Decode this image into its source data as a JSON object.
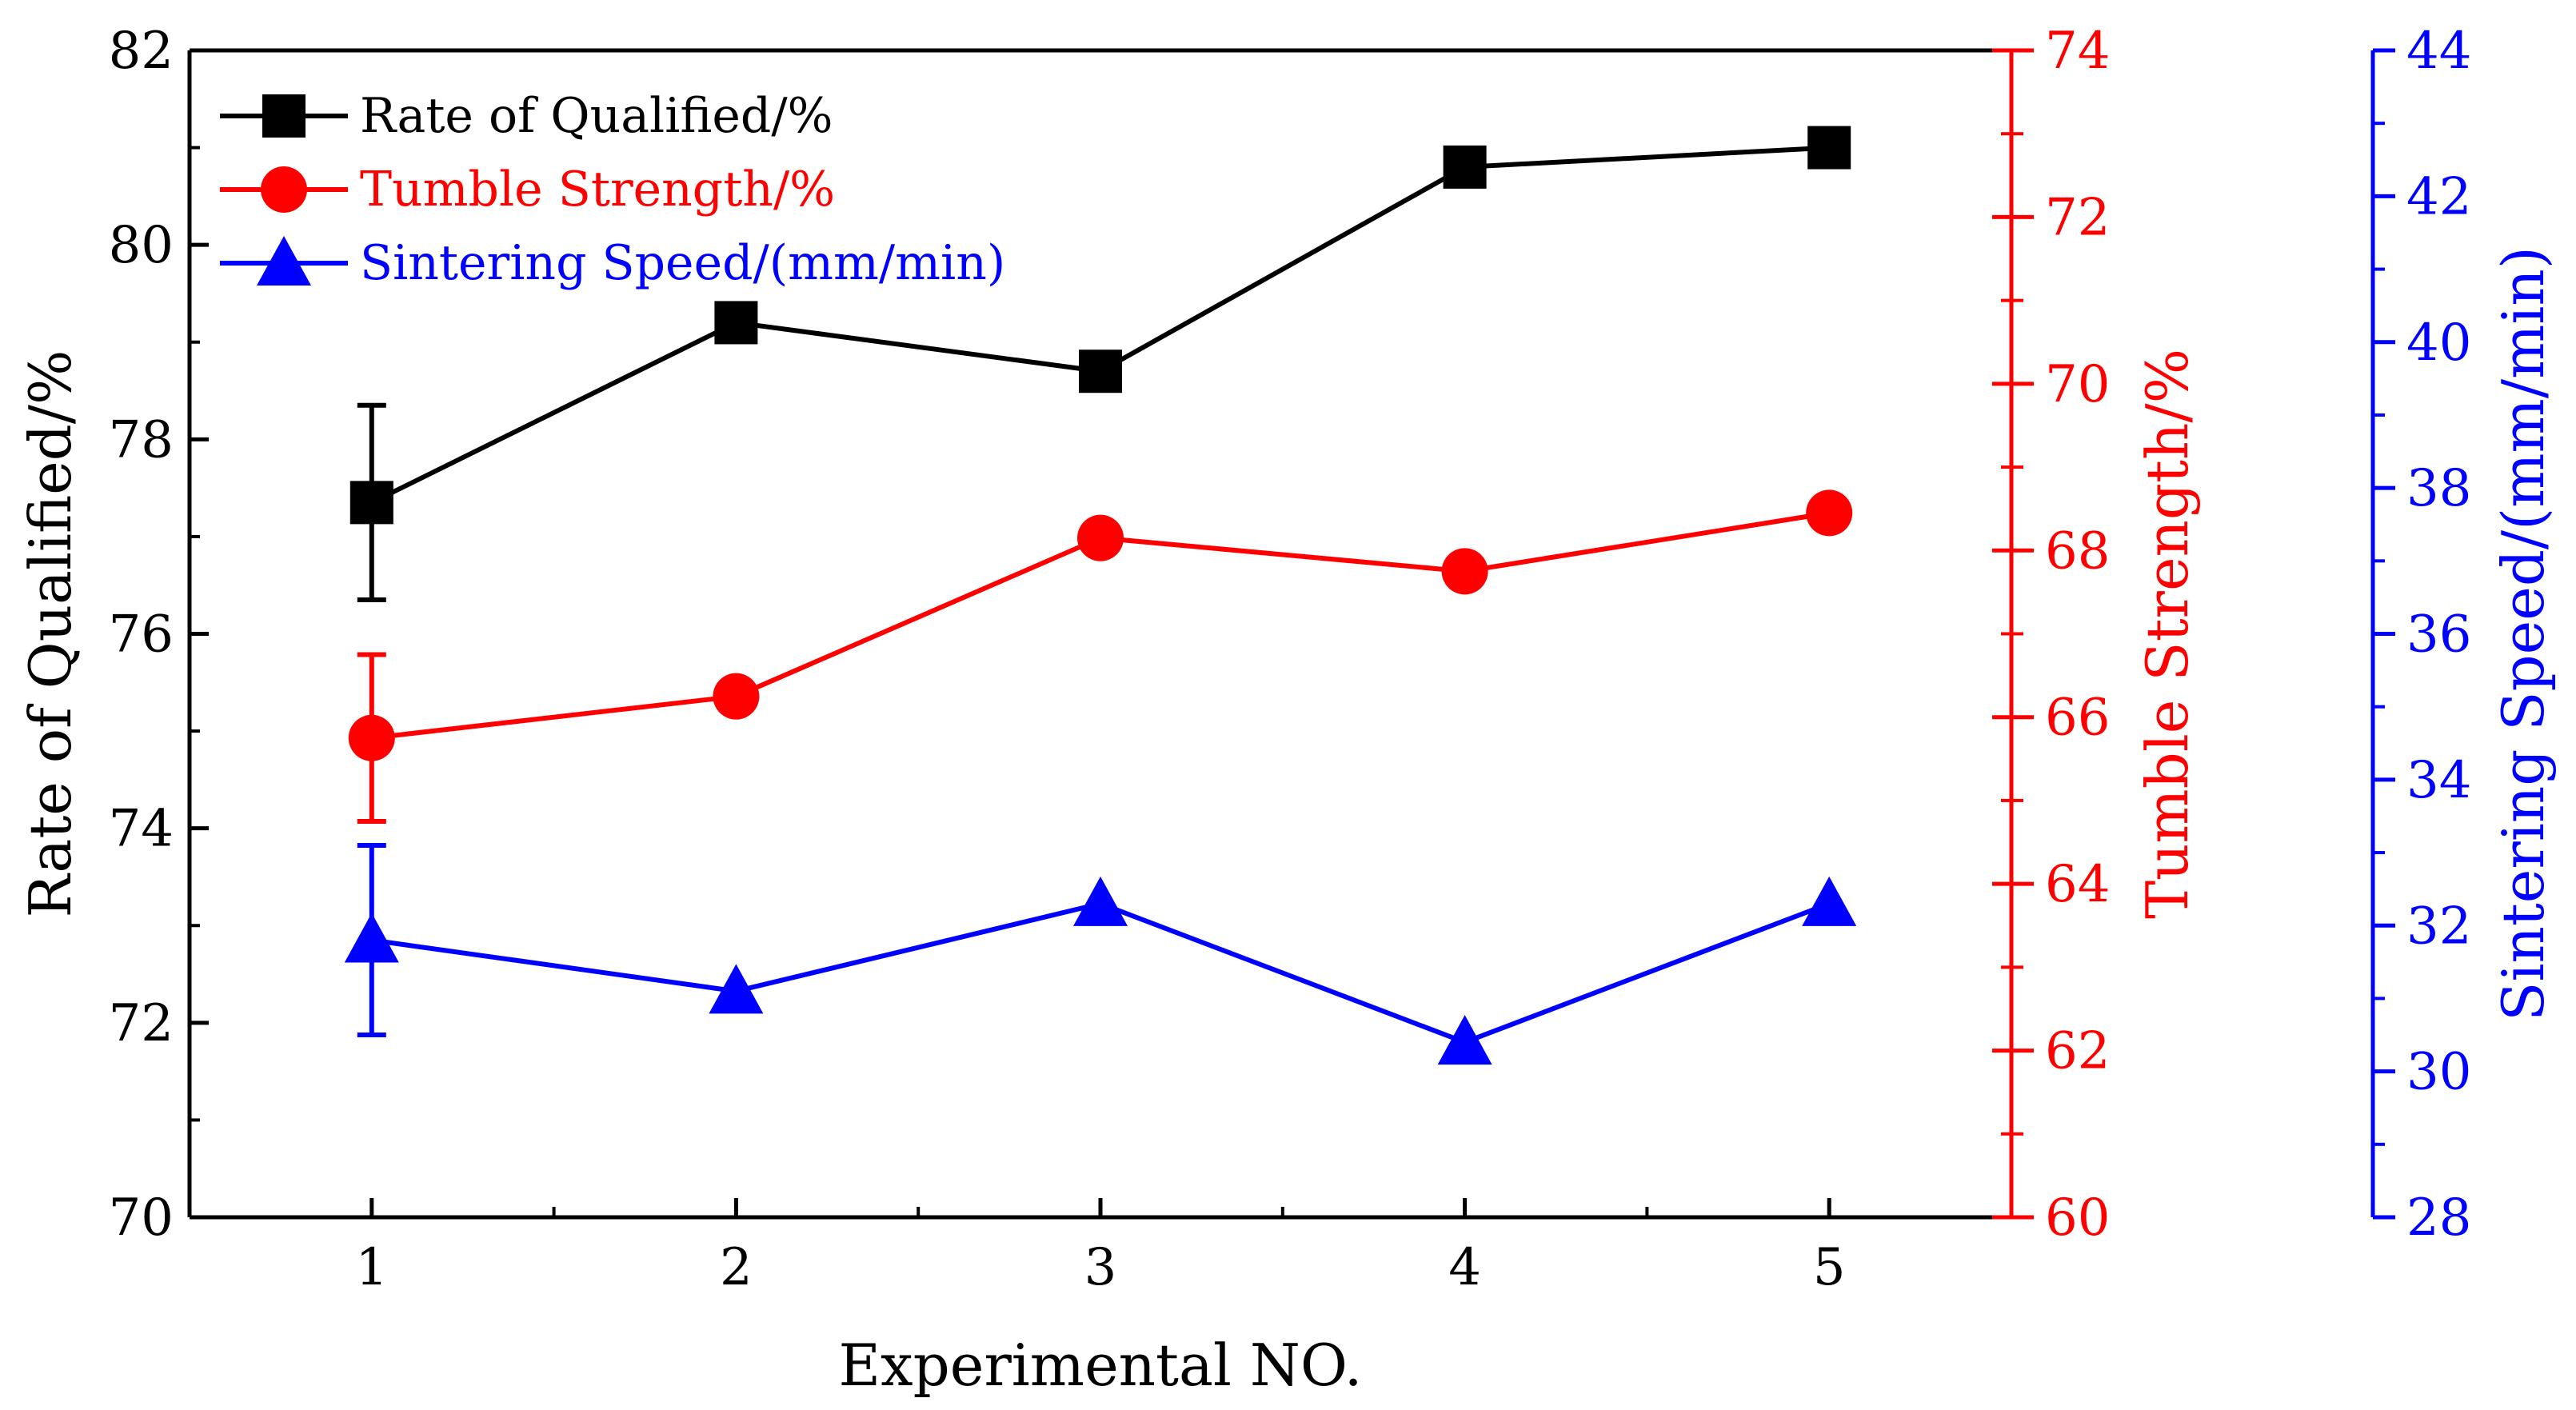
{
  "chart_data": {
    "type": "line",
    "x": [
      1,
      2,
      3,
      4,
      5
    ],
    "xlabel": "Experimental NO.",
    "xlim": [
      0.5,
      5.5
    ],
    "xticks": [
      "1",
      "2",
      "3",
      "4",
      "5"
    ],
    "axes": {
      "left": {
        "label": "Rate of Qualified/%",
        "range": [
          70,
          82
        ],
        "ticks": [
          "70",
          "72",
          "74",
          "76",
          "78",
          "80",
          "82"
        ],
        "color": "#000000"
      },
      "right1": {
        "label": "Tumble Strength/%",
        "range": [
          60,
          74
        ],
        "ticks": [
          "60",
          "62",
          "64",
          "66",
          "68",
          "70",
          "72",
          "74"
        ],
        "color": "#ff0000"
      },
      "right2": {
        "label": "Sintering Speed/(mm/min)",
        "range": [
          28,
          44
        ],
        "ticks": [
          "28",
          "30",
          "32",
          "34",
          "36",
          "38",
          "40",
          "42",
          "44"
        ],
        "color": "#0000ff"
      }
    },
    "series": [
      {
        "name": "Rate of Qualified/%",
        "axis": "left",
        "color": "#000000",
        "marker": "square",
        "values": [
          77.35,
          79.2,
          78.7,
          80.8,
          81.0
        ],
        "error": [
          1.0,
          0,
          0,
          0,
          0
        ]
      },
      {
        "name": "Tumble Strength/%",
        "axis": "right1",
        "color": "#ff0000",
        "marker": "circle",
        "values": [
          65.75,
          66.25,
          68.15,
          67.75,
          68.45
        ],
        "error": [
          1.0,
          0,
          0,
          0,
          0
        ]
      },
      {
        "name": "Sintering Speed/(mm/min)",
        "axis": "right2",
        "color": "#0000ff",
        "marker": "triangle",
        "values": [
          31.8,
          31.1,
          32.3,
          30.4,
          32.3
        ],
        "error": [
          1.3,
          0,
          0,
          0,
          0
        ]
      }
    ],
    "legend": "top-left"
  }
}
